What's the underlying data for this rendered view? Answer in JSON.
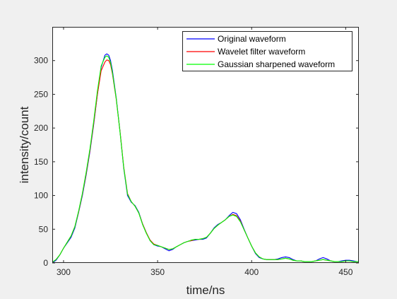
{
  "chart_data": {
    "type": "line",
    "title": "",
    "xlabel": "time/ns",
    "ylabel": "intensity/count",
    "xlim": [
      294,
      457
    ],
    "ylim": [
      0,
      350
    ],
    "xticks": [
      300,
      350,
      400,
      450
    ],
    "yticks": [
      0,
      50,
      100,
      150,
      200,
      250,
      300
    ],
    "grid": false,
    "legend_position": "top-right",
    "series": [
      {
        "name": "Original waveform",
        "color": "#0000ff",
        "x": [
          294,
          296,
          298,
          300,
          302,
          304,
          306,
          308,
          310,
          312,
          314,
          316,
          318,
          320,
          322,
          323,
          324,
          325,
          326,
          328,
          330,
          332,
          334,
          336,
          338,
          340,
          342,
          344,
          346,
          348,
          350,
          352,
          354,
          356,
          358,
          360,
          362,
          364,
          366,
          368,
          370,
          372,
          374,
          376,
          378,
          380,
          382,
          384,
          386,
          388,
          390,
          392,
          394,
          396,
          398,
          400,
          402,
          404,
          406,
          408,
          410,
          412,
          414,
          416,
          418,
          420,
          422,
          424,
          426,
          428,
          430,
          432,
          434,
          436,
          438,
          440,
          442,
          444,
          446,
          448,
          450,
          452,
          454,
          456,
          457
        ],
        "values": [
          0,
          4,
          12,
          22,
          30,
          38,
          52,
          75,
          100,
          130,
          165,
          205,
          250,
          290,
          308,
          310,
          308,
          300,
          285,
          245,
          195,
          140,
          100,
          90,
          85,
          75,
          58,
          45,
          33,
          27,
          25,
          24,
          21,
          18,
          20,
          24,
          27,
          30,
          32,
          33,
          34,
          35,
          35,
          37,
          44,
          52,
          57,
          60,
          64,
          70,
          75,
          73,
          64,
          50,
          37,
          25,
          14,
          8,
          6,
          5,
          5,
          5,
          6,
          8,
          9,
          8,
          5,
          3,
          3,
          2,
          2,
          2,
          3,
          6,
          8,
          6,
          3,
          2,
          2,
          3,
          4,
          4,
          3,
          2,
          2
        ]
      },
      {
        "name": "Wavelet filter waveform",
        "color": "#ff0000",
        "x": [
          294,
          296,
          298,
          300,
          302,
          304,
          306,
          308,
          310,
          312,
          314,
          316,
          318,
          320,
          322,
          323,
          324,
          325,
          326,
          328,
          330,
          332,
          334,
          336,
          338,
          340,
          342,
          344,
          346,
          348,
          350,
          352,
          354,
          356,
          358,
          360,
          362,
          364,
          366,
          368,
          370,
          372,
          374,
          376,
          378,
          380,
          382,
          384,
          386,
          388,
          390,
          392,
          394,
          396,
          398,
          400,
          402,
          404,
          406,
          408,
          410,
          412,
          414,
          416,
          418,
          420,
          422,
          424,
          426,
          428,
          430,
          432,
          434,
          436,
          438,
          440,
          442,
          444,
          446,
          448,
          450,
          452,
          454,
          456,
          457
        ],
        "values": [
          1,
          5,
          12,
          22,
          31,
          40,
          54,
          76,
          102,
          132,
          167,
          207,
          250,
          285,
          298,
          301,
          300,
          294,
          280,
          243,
          195,
          142,
          103,
          91,
          84,
          74,
          58,
          45,
          34,
          28,
          26,
          24,
          22,
          20,
          21,
          24,
          27,
          30,
          32,
          33,
          35,
          35,
          36,
          38,
          44,
          51,
          56,
          60,
          64,
          69,
          72,
          70,
          62,
          49,
          37,
          25,
          15,
          9,
          6,
          5,
          5,
          5,
          5,
          6,
          7,
          6,
          4,
          3,
          3,
          2,
          2,
          2,
          3,
          4,
          5,
          4,
          3,
          2,
          2,
          2,
          3,
          3,
          2,
          2,
          2
        ]
      },
      {
        "name": "Gaussian sharpened waveform",
        "color": "#00ff00",
        "x": [
          294,
          296,
          298,
          300,
          302,
          304,
          306,
          308,
          310,
          312,
          314,
          316,
          318,
          320,
          322,
          323,
          324,
          325,
          326,
          328,
          330,
          332,
          334,
          336,
          338,
          340,
          342,
          344,
          346,
          348,
          350,
          352,
          354,
          356,
          358,
          360,
          362,
          364,
          366,
          368,
          370,
          372,
          374,
          376,
          378,
          380,
          382,
          384,
          386,
          388,
          390,
          392,
          394,
          396,
          398,
          400,
          402,
          404,
          406,
          408,
          410,
          412,
          414,
          416,
          418,
          420,
          422,
          424,
          426,
          428,
          430,
          432,
          434,
          436,
          438,
          440,
          442,
          444,
          446,
          448,
          450,
          452,
          454,
          456,
          457
        ],
        "values": [
          1,
          5,
          12,
          22,
          31,
          40,
          54,
          77,
          103,
          134,
          169,
          210,
          255,
          292,
          305,
          307,
          305,
          297,
          282,
          244,
          194,
          141,
          102,
          91,
          84,
          74,
          57,
          44,
          33,
          27,
          26,
          24,
          22,
          20,
          21,
          24,
          27,
          30,
          32,
          34,
          35,
          35,
          36,
          38,
          44,
          51,
          56,
          60,
          64,
          69,
          71,
          69,
          61,
          49,
          37,
          25,
          15,
          9,
          6,
          5,
          5,
          5,
          5,
          6,
          7,
          6,
          4,
          3,
          3,
          2,
          2,
          2,
          3,
          4,
          5,
          4,
          3,
          2,
          2,
          2,
          3,
          3,
          2,
          2,
          2
        ]
      }
    ]
  }
}
